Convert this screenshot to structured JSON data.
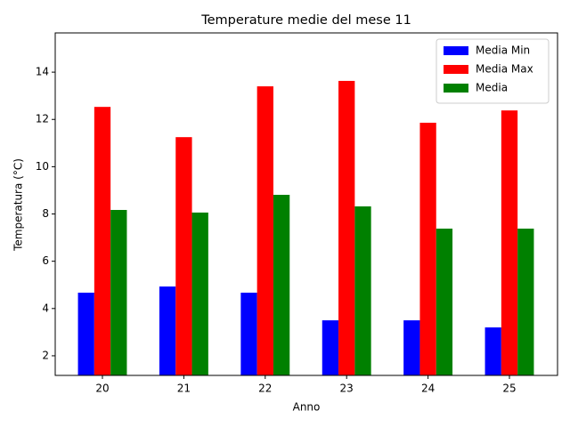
{
  "chart_data": {
    "type": "bar",
    "title": "Temperature medie del mese 11",
    "x_label": "Anno",
    "y_label": "Temperatura (°C)",
    "categories": [
      "20",
      "21",
      "22",
      "23",
      "24",
      "25"
    ],
    "series": [
      {
        "name": "Media Min",
        "color": "#0000ff",
        "values": [
          4.67,
          4.93,
          4.67,
          3.5,
          3.5,
          3.2
        ]
      },
      {
        "name": "Media Max",
        "color": "#ff0000",
        "values": [
          12.53,
          11.25,
          13.4,
          13.63,
          11.86,
          12.38
        ]
      },
      {
        "name": "Media",
        "color": "#008000",
        "values": [
          8.17,
          8.06,
          8.81,
          8.32,
          7.38,
          7.38
        ]
      }
    ],
    "ylim": [
      1.17,
      15.66
    ],
    "yticks": [
      2,
      4,
      6,
      8,
      10,
      12,
      14
    ],
    "legend": "upper right"
  }
}
